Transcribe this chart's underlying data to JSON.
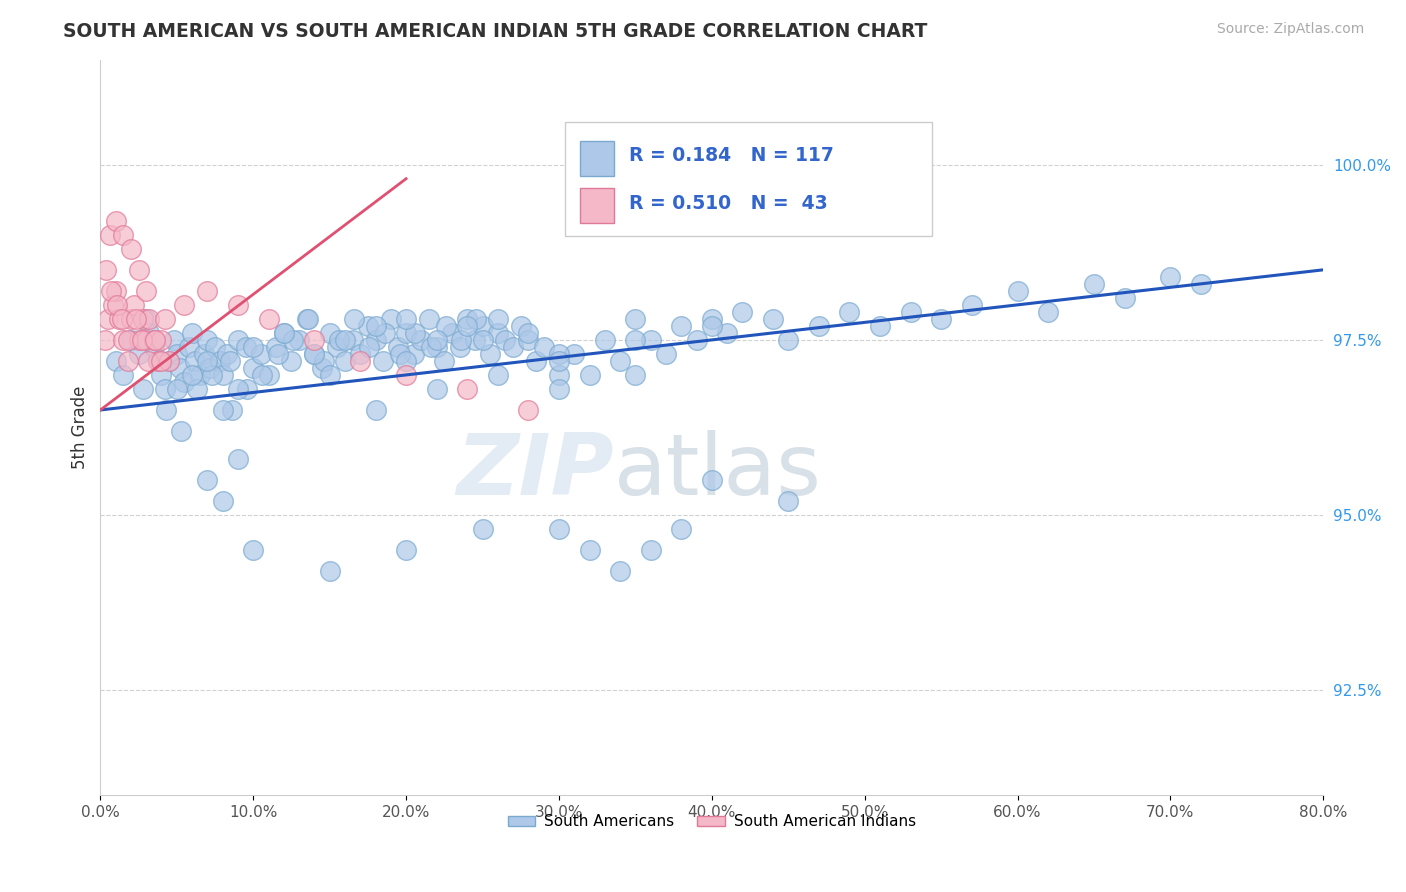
{
  "title": "SOUTH AMERICAN VS SOUTH AMERICAN INDIAN 5TH GRADE CORRELATION CHART",
  "source_text": "Source: ZipAtlas.com",
  "ylabel": "5th Grade",
  "xlim": [
    0.0,
    80.0
  ],
  "ylim": [
    91.0,
    101.5
  ],
  "yticks": [
    92.5,
    95.0,
    97.5,
    100.0
  ],
  "xticks": [
    0.0,
    10.0,
    20.0,
    30.0,
    40.0,
    50.0,
    60.0,
    70.0,
    80.0
  ],
  "r_blue": 0.184,
  "n_blue": 117,
  "r_pink": 0.51,
  "n_pink": 43,
  "blue_color": "#adc8e8",
  "blue_edge": "#7aaad0",
  "pink_color": "#f5b8c8",
  "pink_edge": "#e07898",
  "blue_line_color": "#2255bb",
  "pink_line_color": "#e05070",
  "legend_blue_label": "South Americans",
  "legend_pink_label": "South American Indians",
  "watermark_zip": "ZIP",
  "watermark_atlas": "atlas",
  "blue_scatter_x": [
    1.0,
    1.5,
    2.0,
    2.5,
    3.0,
    3.2,
    3.5,
    3.8,
    4.0,
    4.2,
    4.5,
    4.8,
    5.0,
    5.2,
    5.5,
    5.8,
    6.0,
    6.2,
    6.5,
    6.8,
    7.0,
    7.2,
    7.5,
    7.8,
    8.0,
    8.3,
    8.5,
    9.0,
    9.5,
    10.0,
    10.5,
    11.0,
    11.5,
    12.0,
    12.5,
    13.0,
    13.5,
    14.0,
    14.5,
    15.0,
    15.5,
    16.0,
    16.5,
    17.0,
    17.5,
    18.0,
    18.5,
    19.0,
    19.5,
    20.0,
    20.5,
    21.0,
    21.5,
    22.0,
    22.5,
    23.0,
    23.5,
    24.0,
    24.5,
    25.0,
    25.5,
    26.0,
    26.5,
    27.0,
    27.5,
    28.0,
    28.5,
    29.0,
    30.0,
    31.0,
    32.0,
    33.0,
    34.0,
    35.0,
    36.0,
    37.0,
    38.0,
    39.0,
    40.0,
    41.0,
    42.0,
    44.0,
    45.0,
    47.0,
    49.0,
    51.0,
    53.0,
    55.0,
    57.0,
    60.0,
    62.0,
    65.0,
    67.0,
    70.0,
    72.0,
    2.8,
    4.3,
    5.3,
    6.3,
    7.3,
    8.6,
    9.6,
    10.6,
    11.6,
    12.6,
    13.6,
    14.6,
    15.6,
    16.6,
    17.6,
    18.6,
    19.6,
    20.6,
    21.6,
    22.6,
    23.6,
    24.6,
    7.0,
    8.0,
    9.0
  ],
  "blue_scatter_y": [
    97.2,
    97.0,
    97.5,
    97.3,
    97.8,
    97.6,
    97.4,
    97.2,
    97.0,
    96.8,
    97.2,
    97.5,
    97.3,
    97.1,
    96.9,
    97.4,
    97.6,
    97.2,
    97.0,
    97.3,
    97.5,
    97.1,
    97.4,
    97.2,
    97.0,
    97.3,
    97.2,
    97.5,
    97.4,
    97.1,
    97.3,
    97.0,
    97.4,
    97.6,
    97.2,
    97.5,
    97.8,
    97.3,
    97.1,
    97.6,
    97.4,
    97.2,
    97.5,
    97.3,
    97.7,
    97.5,
    97.2,
    97.8,
    97.4,
    97.6,
    97.3,
    97.5,
    97.8,
    97.4,
    97.2,
    97.6,
    97.4,
    97.8,
    97.5,
    97.7,
    97.3,
    97.6,
    97.5,
    97.4,
    97.7,
    97.5,
    97.2,
    97.4,
    97.0,
    97.3,
    97.0,
    97.5,
    97.2,
    97.8,
    97.5,
    97.3,
    97.7,
    97.5,
    97.8,
    97.6,
    97.9,
    97.8,
    97.5,
    97.7,
    97.9,
    97.7,
    97.9,
    97.8,
    98.0,
    98.2,
    97.9,
    98.3,
    98.1,
    98.4,
    98.3,
    96.8,
    96.5,
    96.2,
    96.8,
    97.0,
    96.5,
    96.8,
    97.0,
    97.3,
    97.5,
    97.8,
    97.2,
    97.5,
    97.8,
    97.4,
    97.6,
    97.3,
    97.6,
    97.4,
    97.7,
    97.5,
    97.8,
    95.5,
    95.2,
    95.8
  ],
  "blue_scatter_x2": [
    10.0,
    12.0,
    14.0,
    16.0,
    18.0,
    20.0,
    22.0,
    24.0,
    26.0,
    28.0,
    15.0,
    20.0,
    25.0,
    30.0,
    35.0,
    40.0,
    30.0,
    35.0,
    18.0,
    22.0,
    26.0,
    30.0,
    5.0,
    6.0,
    7.0,
    8.0,
    9.0,
    30.0,
    32.0,
    34.0,
    36.0,
    38.0,
    10.0,
    15.0,
    20.0,
    25.0,
    40.0,
    45.0
  ],
  "blue_scatter_y2": [
    97.4,
    97.6,
    97.3,
    97.5,
    97.7,
    97.8,
    97.5,
    97.7,
    97.8,
    97.6,
    97.0,
    97.2,
    97.5,
    97.3,
    97.5,
    97.7,
    96.8,
    97.0,
    96.5,
    96.8,
    97.0,
    97.2,
    96.8,
    97.0,
    97.2,
    96.5,
    96.8,
    94.8,
    94.5,
    94.2,
    94.5,
    94.8,
    94.5,
    94.2,
    94.5,
    94.8,
    95.5,
    95.2
  ],
  "pink_scatter_x": [
    0.3,
    0.5,
    0.8,
    1.0,
    1.2,
    1.5,
    1.8,
    2.0,
    2.2,
    2.5,
    2.8,
    3.0,
    3.2,
    3.5,
    3.8,
    4.0,
    4.2,
    4.5,
    0.4,
    0.7,
    1.1,
    1.4,
    1.8,
    2.3,
    2.7,
    3.1,
    3.6,
    4.0,
    0.6,
    1.0,
    1.5,
    2.0,
    2.5,
    3.0,
    5.5,
    7.0,
    9.0,
    11.0,
    14.0,
    17.0,
    20.0,
    24.0,
    28.0
  ],
  "pink_scatter_y": [
    97.5,
    97.8,
    98.0,
    98.2,
    97.8,
    97.5,
    97.2,
    97.8,
    98.0,
    97.5,
    97.8,
    97.5,
    97.8,
    97.5,
    97.2,
    97.5,
    97.8,
    97.2,
    98.5,
    98.2,
    98.0,
    97.8,
    97.5,
    97.8,
    97.5,
    97.2,
    97.5,
    97.2,
    99.0,
    99.2,
    99.0,
    98.8,
    98.5,
    98.2,
    98.0,
    98.2,
    98.0,
    97.8,
    97.5,
    97.2,
    97.0,
    96.8,
    96.5
  ],
  "blue_line_x": [
    0.0,
    80.0
  ],
  "blue_line_y": [
    96.5,
    98.5
  ],
  "pink_line_x": [
    0.0,
    20.0
  ],
  "pink_line_y": [
    96.5,
    99.8
  ]
}
